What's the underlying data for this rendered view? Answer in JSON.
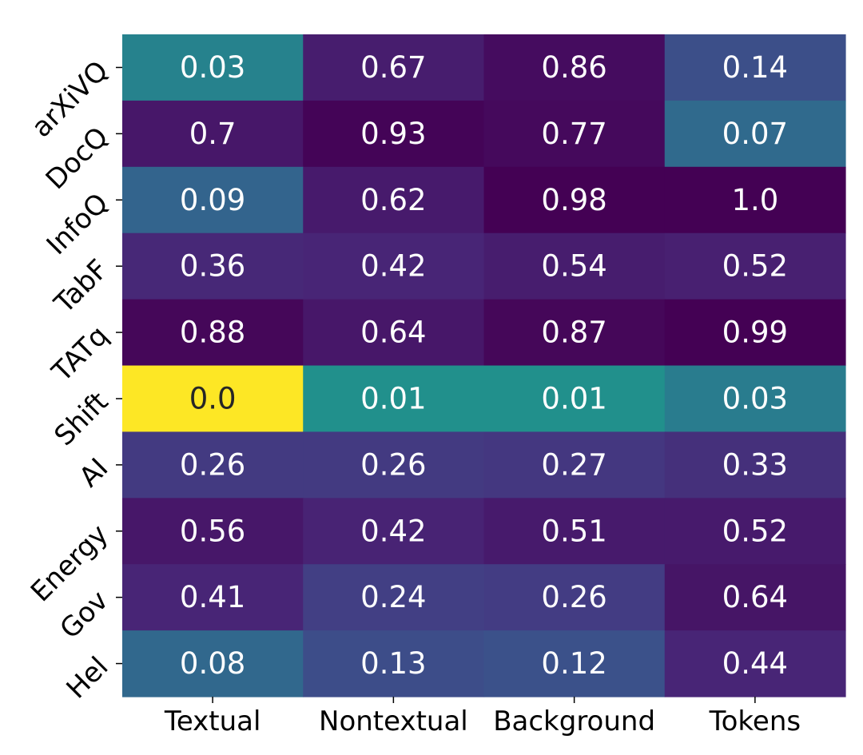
{
  "chart_data": {
    "type": "heatmap",
    "title": "",
    "xlabel": "",
    "ylabel": "",
    "colormap": "viridis",
    "colorbar": false,
    "x_categories": [
      "Textual",
      "Nontextual",
      "Background",
      "Tokens"
    ],
    "y_categories": [
      "arXiVQ",
      "DocQ",
      "InfoQ",
      "TabF",
      "TATq",
      "Shift",
      "AI",
      "Energy",
      "Gov",
      "Hel"
    ],
    "value_labels": [
      [
        "0.03",
        "0.67",
        "0.86",
        "0.14"
      ],
      [
        "0.7",
        "0.93",
        "0.77",
        "0.07"
      ],
      [
        "0.09",
        "0.62",
        "0.98",
        "1.0"
      ],
      [
        "0.36",
        "0.42",
        "0.54",
        "0.52"
      ],
      [
        "0.88",
        "0.64",
        "0.87",
        "0.99"
      ],
      [
        "0.0",
        "0.01",
        "0.01",
        "0.03"
      ],
      [
        "0.26",
        "0.26",
        "0.27",
        "0.33"
      ],
      [
        "0.56",
        "0.42",
        "0.51",
        "0.52"
      ],
      [
        "0.41",
        "0.24",
        "0.26",
        "0.64"
      ],
      [
        "0.08",
        "0.13",
        "0.12",
        "0.44"
      ]
    ],
    "color_values": [
      [
        0.45,
        0.9,
        0.96,
        0.7
      ],
      [
        0.92,
        0.99,
        0.97,
        0.57
      ],
      [
        0.6,
        0.91,
        1.0,
        1.0
      ],
      [
        0.86,
        0.87,
        0.9,
        0.89
      ],
      [
        0.98,
        0.92,
        0.98,
        1.0
      ],
      [
        0.0,
        0.38,
        0.38,
        0.48
      ],
      [
        0.79,
        0.79,
        0.8,
        0.83
      ],
      [
        0.92,
        0.88,
        0.91,
        0.91
      ],
      [
        0.87,
        0.77,
        0.78,
        0.93
      ],
      [
        0.58,
        0.71,
        0.69,
        0.87
      ]
    ],
    "color_scale": "viridis_r",
    "grid": false
  }
}
